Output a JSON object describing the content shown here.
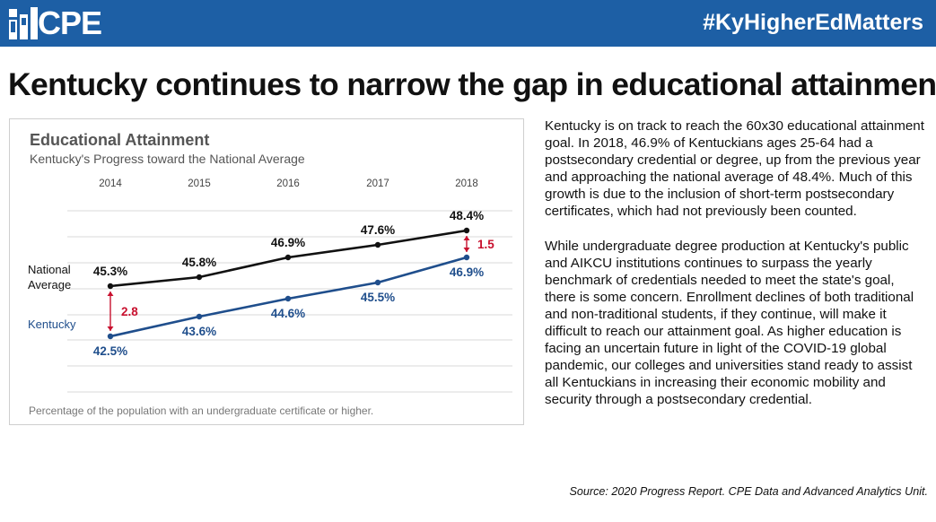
{
  "header": {
    "logo_text": "CPE",
    "hashtag": "#KyHigherEdMatters"
  },
  "headline": "Kentucky continues to narrow the gap in educational attainment",
  "chart_data": {
    "type": "line",
    "title": "Educational Attainment",
    "subtitle": "Kentucky's Progress toward the National Average",
    "categories": [
      "2014",
      "2015",
      "2016",
      "2017",
      "2018"
    ],
    "series": [
      {
        "name": "National Average",
        "values": [
          45.3,
          45.8,
          46.9,
          47.6,
          48.4
        ],
        "labels": [
          "45.3%",
          "45.8%",
          "46.9%",
          "47.6%",
          "48.4%"
        ],
        "color": "#111111"
      },
      {
        "name": "Kentucky",
        "values": [
          42.5,
          43.6,
          44.6,
          45.5,
          46.9
        ],
        "labels": [
          "42.5%",
          "43.6%",
          "44.6%",
          "45.5%",
          "46.9%"
        ],
        "color": "#1f4e8c"
      }
    ],
    "gaps": [
      {
        "category": "2014",
        "label": "2.8"
      },
      {
        "category": "2018",
        "label": "1.5"
      }
    ],
    "gap_color": "#c8102e",
    "ylim": [
      39.6,
      49.6
    ],
    "grid": true,
    "legend": "inline-left",
    "footnote": "Percentage of the population with an undergraduate certificate or higher."
  },
  "body": {
    "paragraphs": [
      "Kentucky is on track to reach the 60x30 educational attainment goal. In 2018, 46.9% of Kentuckians ages 25-64 had a postsecondary credential or degree, up from the previous year and approaching the national average of 48.4%. Much of this growth is due to the inclusion of short-term postsecondary certificates, which had not previously been counted.",
      "While undergraduate degree production at Kentucky's public and AIKCU institutions continues to surpass the yearly benchmark of credentials needed to meet the state's goal, there is some concern. Enrollment declines of both traditional and non-traditional students, if they continue, will make it difficult to reach our attainment goal.  As higher education is facing an uncertain future in light of the COVID-19 global pandemic, our colleges and universities stand ready to assist all Kentuckians in increasing their economic mobility and security through a postsecondary credential."
    ]
  },
  "source": "Source: 2020 Progress Report. CPE Data and Advanced Analytics Unit."
}
